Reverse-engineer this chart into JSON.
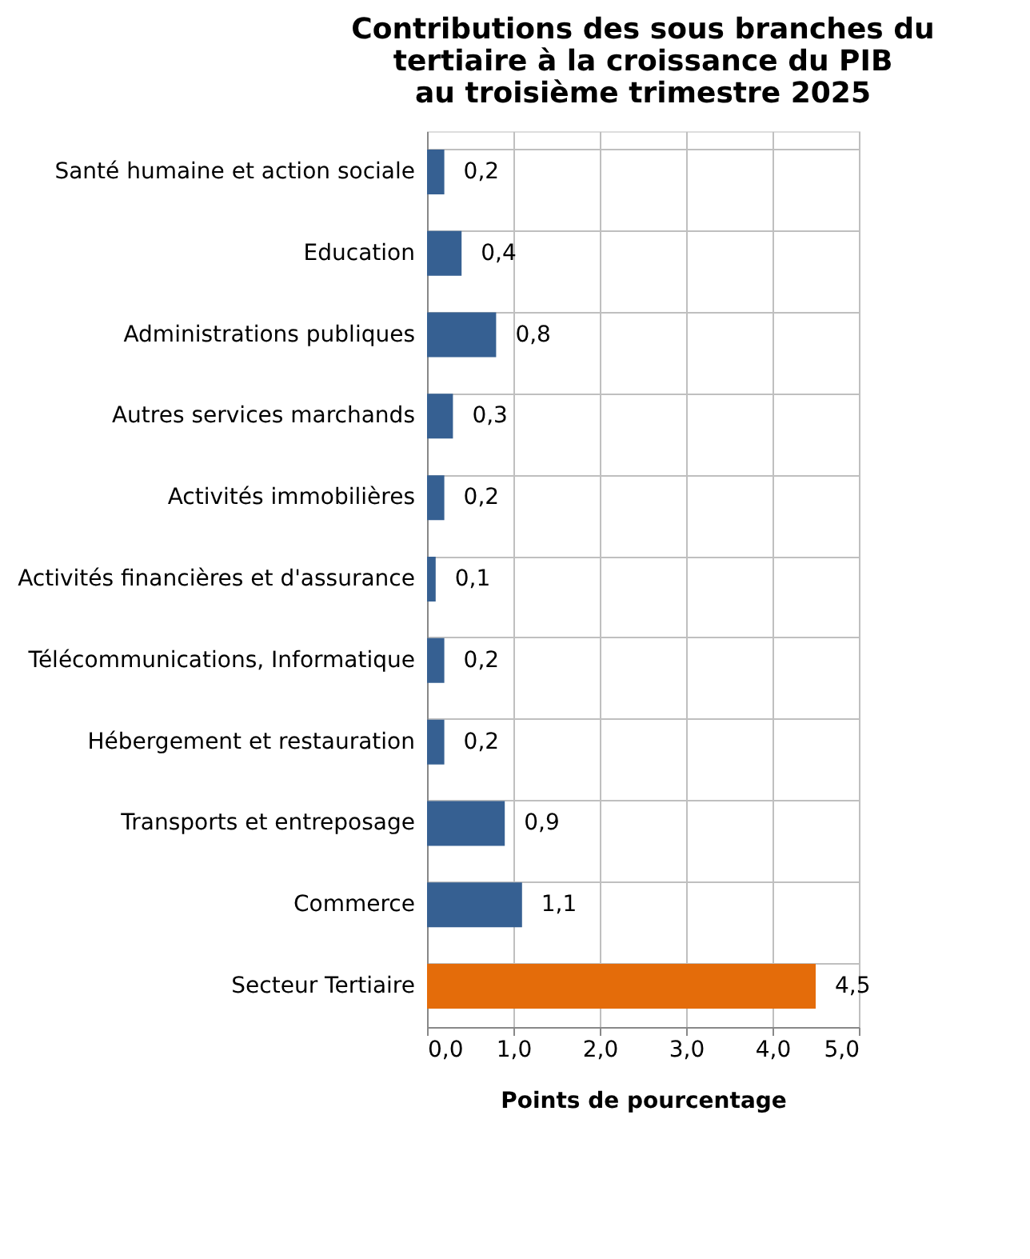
{
  "chart_data": {
    "type": "bar",
    "orientation": "horizontal",
    "title": "Contributions des sous branches du tertiaire à la croissance du PIB au troisième trimestre 2025",
    "xlabel": "Points de pourcentage",
    "categories": [
      "Santé humaine et action sociale",
      "Education",
      "Administrations publiques",
      "Autres services marchands",
      "Activités immobilières",
      "Activités financières et d'assurance",
      "Télécommunications, Informatique",
      "Hébergement et restauration",
      "Transports et entreposage",
      "Commerce",
      "Secteur Tertiaire"
    ],
    "values": [
      0.2,
      0.4,
      0.8,
      0.3,
      0.2,
      0.1,
      0.2,
      0.2,
      0.9,
      1.1,
      4.5
    ],
    "value_labels": [
      "0,2",
      "0,4",
      "0,8",
      "0,3",
      "0,2",
      "0,1",
      "0,2",
      "0,2",
      "0,9",
      "1,1",
      "4,5"
    ],
    "colors": [
      "#366092",
      "#366092",
      "#366092",
      "#366092",
      "#366092",
      "#366092",
      "#366092",
      "#366092",
      "#366092",
      "#366092",
      "#e46c0a"
    ],
    "xlim": [
      0,
      5
    ],
    "xticks": [
      {
        "value": 0,
        "label": "0,0"
      },
      {
        "value": 1,
        "label": "1,0"
      },
      {
        "value": 2,
        "label": "2,0"
      },
      {
        "value": 3,
        "label": "3,0"
      },
      {
        "value": 4,
        "label": "4,0"
      },
      {
        "value": 5,
        "label": "5,0"
      }
    ],
    "grid": true
  }
}
